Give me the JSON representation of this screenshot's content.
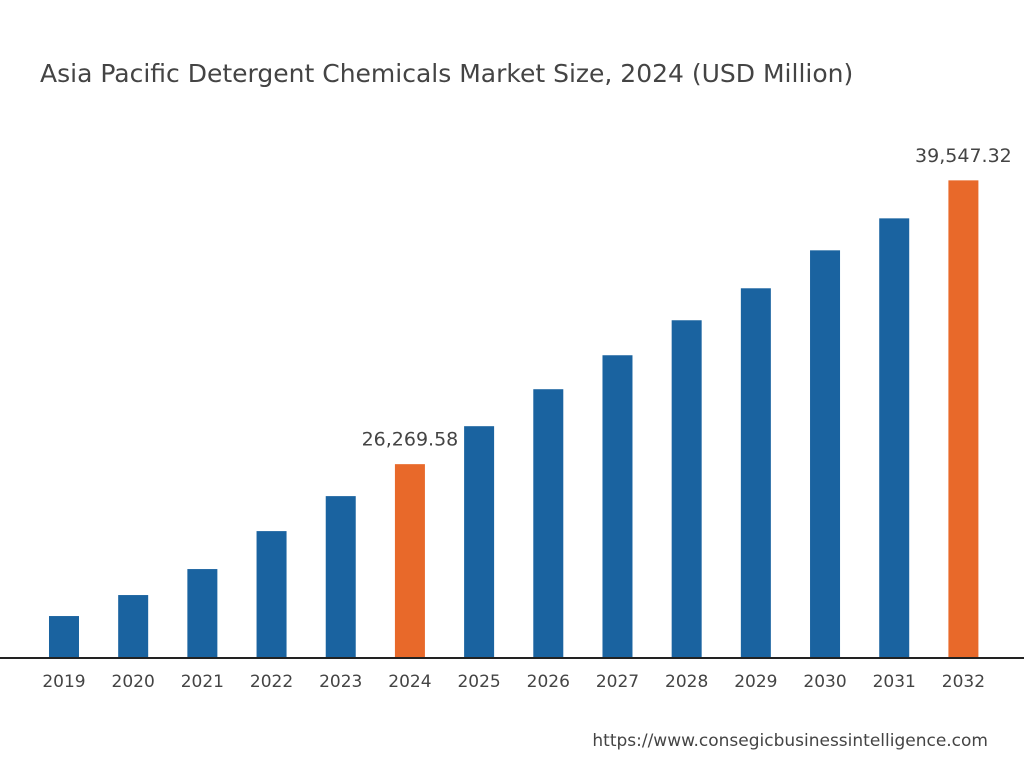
{
  "chart_data": {
    "type": "bar",
    "title": "Asia Pacific Detergent Chemicals Market Size, 2024 (USD Million)",
    "categories": [
      "2019",
      "2020",
      "2021",
      "2022",
      "2023",
      "2024",
      "2025",
      "2026",
      "2027",
      "2028",
      "2029",
      "2030",
      "2031",
      "2032"
    ],
    "values": [
      19163,
      20145,
      21361,
      23137,
      24774,
      26269.58,
      28046,
      29776,
      31365,
      33002,
      34498,
      36274,
      37770,
      39547.32
    ],
    "value_labels": [
      null,
      null,
      null,
      null,
      null,
      "26,269.58",
      null,
      null,
      null,
      null,
      null,
      null,
      null,
      "39,547.32"
    ],
    "colors": [
      "#1a63a0",
      "#1a63a0",
      "#1a63a0",
      "#1a63a0",
      "#1a63a0",
      "#e8692a",
      "#1a63a0",
      "#1a63a0",
      "#1a63a0",
      "#1a63a0",
      "#1a63a0",
      "#1a63a0",
      "#1a63a0",
      "#e8692a"
    ],
    "ylim": [
      17200,
      40500
    ],
    "source": "https://www.consegicbusinessintelligence.com"
  }
}
